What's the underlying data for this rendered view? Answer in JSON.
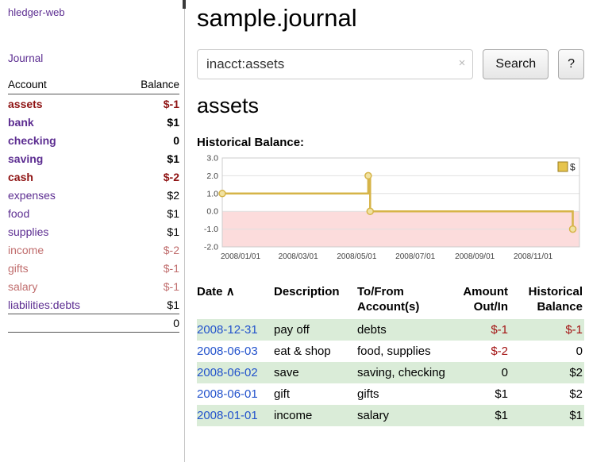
{
  "app": {
    "title": "hledger-web"
  },
  "colors": {
    "link_purple": "#5c2d91",
    "link_blue": "#2353cc",
    "negative_red": "#a31212",
    "row_stripe_green": "#daecd8"
  },
  "sidebar": {
    "journal_link": "Journal",
    "accounts_header": {
      "account": "Account",
      "balance": "Balance"
    },
    "accounts": [
      {
        "name": "assets",
        "balance": "$-1"
      },
      {
        "name": "bank",
        "balance": "$1"
      },
      {
        "name": "checking",
        "balance": "0"
      },
      {
        "name": "saving",
        "balance": "$1"
      },
      {
        "name": "cash",
        "balance": "$-2"
      },
      {
        "name": "expenses",
        "balance": "$2"
      },
      {
        "name": "food",
        "balance": "$1"
      },
      {
        "name": "supplies",
        "balance": "$1"
      },
      {
        "name": "income",
        "balance": "$-2"
      },
      {
        "name": "gifts",
        "balance": "$-1"
      },
      {
        "name": "salary",
        "balance": "$-1"
      },
      {
        "name": "liabilities:debts",
        "balance": "$1"
      }
    ],
    "total": "0"
  },
  "header": {
    "title": "sample.journal"
  },
  "search": {
    "value": "inacct:assets",
    "clear_icon": "×",
    "button_label": "Search",
    "help_label": "?"
  },
  "account_page": {
    "heading": "assets",
    "chart_title": "Historical Balance:"
  },
  "chart_data": {
    "type": "line",
    "title": "Historical Balance:",
    "step": true,
    "ylim": [
      -2,
      3
    ],
    "xlim_days": [
      0,
      372
    ],
    "yticks": [
      "3.0",
      "2.0",
      "1.0",
      "0.0",
      "-1.0",
      "-2.0"
    ],
    "xticks": [
      {
        "day": 0,
        "label": "2008/01/01"
      },
      {
        "day": 60,
        "label": "2008/03/01"
      },
      {
        "day": 121,
        "label": "2008/05/01"
      },
      {
        "day": 182,
        "label": "2008/07/01"
      },
      {
        "day": 244,
        "label": "2008/09/01"
      },
      {
        "day": 305,
        "label": "2008/11/01"
      }
    ],
    "series": [
      {
        "name": "$",
        "points": [
          {
            "date": "2008-01-01",
            "day": 0,
            "value": 1
          },
          {
            "date": "2008-06-01",
            "day": 152,
            "value": 2
          },
          {
            "date": "2008-06-03",
            "day": 154,
            "value": 0
          },
          {
            "date": "2008-12-31",
            "day": 365,
            "value": -1
          }
        ]
      }
    ],
    "legend": {
      "position": "top-right",
      "label": "$"
    },
    "colors": {
      "line": "#d6b448",
      "marker_fill": "#f1e2a2",
      "negative_region": "#fcdcdc",
      "grid": "#e0e0e0",
      "border": "#cccccc",
      "legend_fill": "#e6c44d",
      "legend_border": "#9a7d1f"
    }
  },
  "register": {
    "sort_icon": "∧",
    "columns": [
      "Date",
      "Description",
      "To/From Account(s)",
      "Amount Out/In",
      "Historical Balance"
    ],
    "rows": [
      {
        "date": "2008-12-31",
        "description": "pay off",
        "accounts": "debts",
        "amount": "$-1",
        "balance": "$-1"
      },
      {
        "date": "2008-06-03",
        "description": "eat & shop",
        "accounts": "food, supplies",
        "amount": "$-2",
        "balance": "0"
      },
      {
        "date": "2008-06-02",
        "description": "save",
        "accounts": "saving, checking",
        "amount": "0",
        "balance": "$2"
      },
      {
        "date": "2008-06-01",
        "description": "gift",
        "accounts": "gifts",
        "amount": "$1",
        "balance": "$2"
      },
      {
        "date": "2008-01-01",
        "description": "income",
        "accounts": "salary",
        "amount": "$1",
        "balance": "$1"
      }
    ]
  }
}
